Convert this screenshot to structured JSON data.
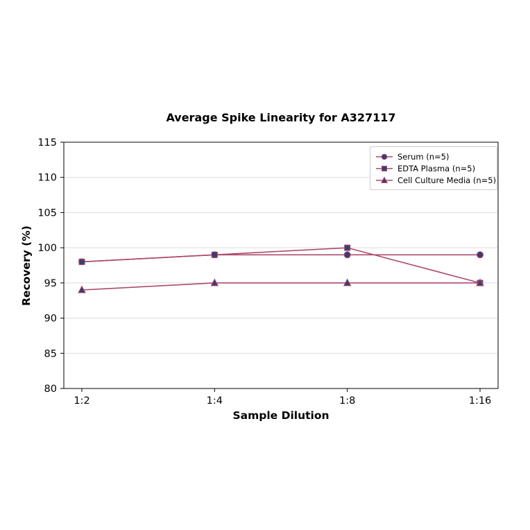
{
  "chart_data": {
    "type": "line",
    "title": "Average Spike Linearity for A327117",
    "xlabel": "Sample Dilution",
    "ylabel": "Recovery (%)",
    "categories": [
      "1:2",
      "1:4",
      "1:8",
      "1:16"
    ],
    "series": [
      {
        "name": "Serum (n=5)",
        "marker": "circle",
        "values": [
          98,
          99,
          99,
          99
        ]
      },
      {
        "name": "EDTA Plasma (n=5)",
        "marker": "square",
        "values": [
          98,
          99,
          100,
          95
        ]
      },
      {
        "name": "Cell Culture Media (n=5)",
        "marker": "triangle",
        "values": [
          94,
          95,
          95,
          95
        ]
      }
    ],
    "ylim": [
      80,
      115
    ],
    "ytick_step": 5,
    "yticks": [
      80,
      85,
      90,
      95,
      100,
      105,
      110,
      115
    ],
    "grid": true,
    "legend_position": "upper right",
    "colors": {
      "line": "#ae4a6c",
      "marker_fill": "#3a3f6e",
      "grid": "#dcdcdc",
      "spine": "#000000",
      "background": "#ffffff",
      "legend_border": "#cccccc"
    }
  }
}
